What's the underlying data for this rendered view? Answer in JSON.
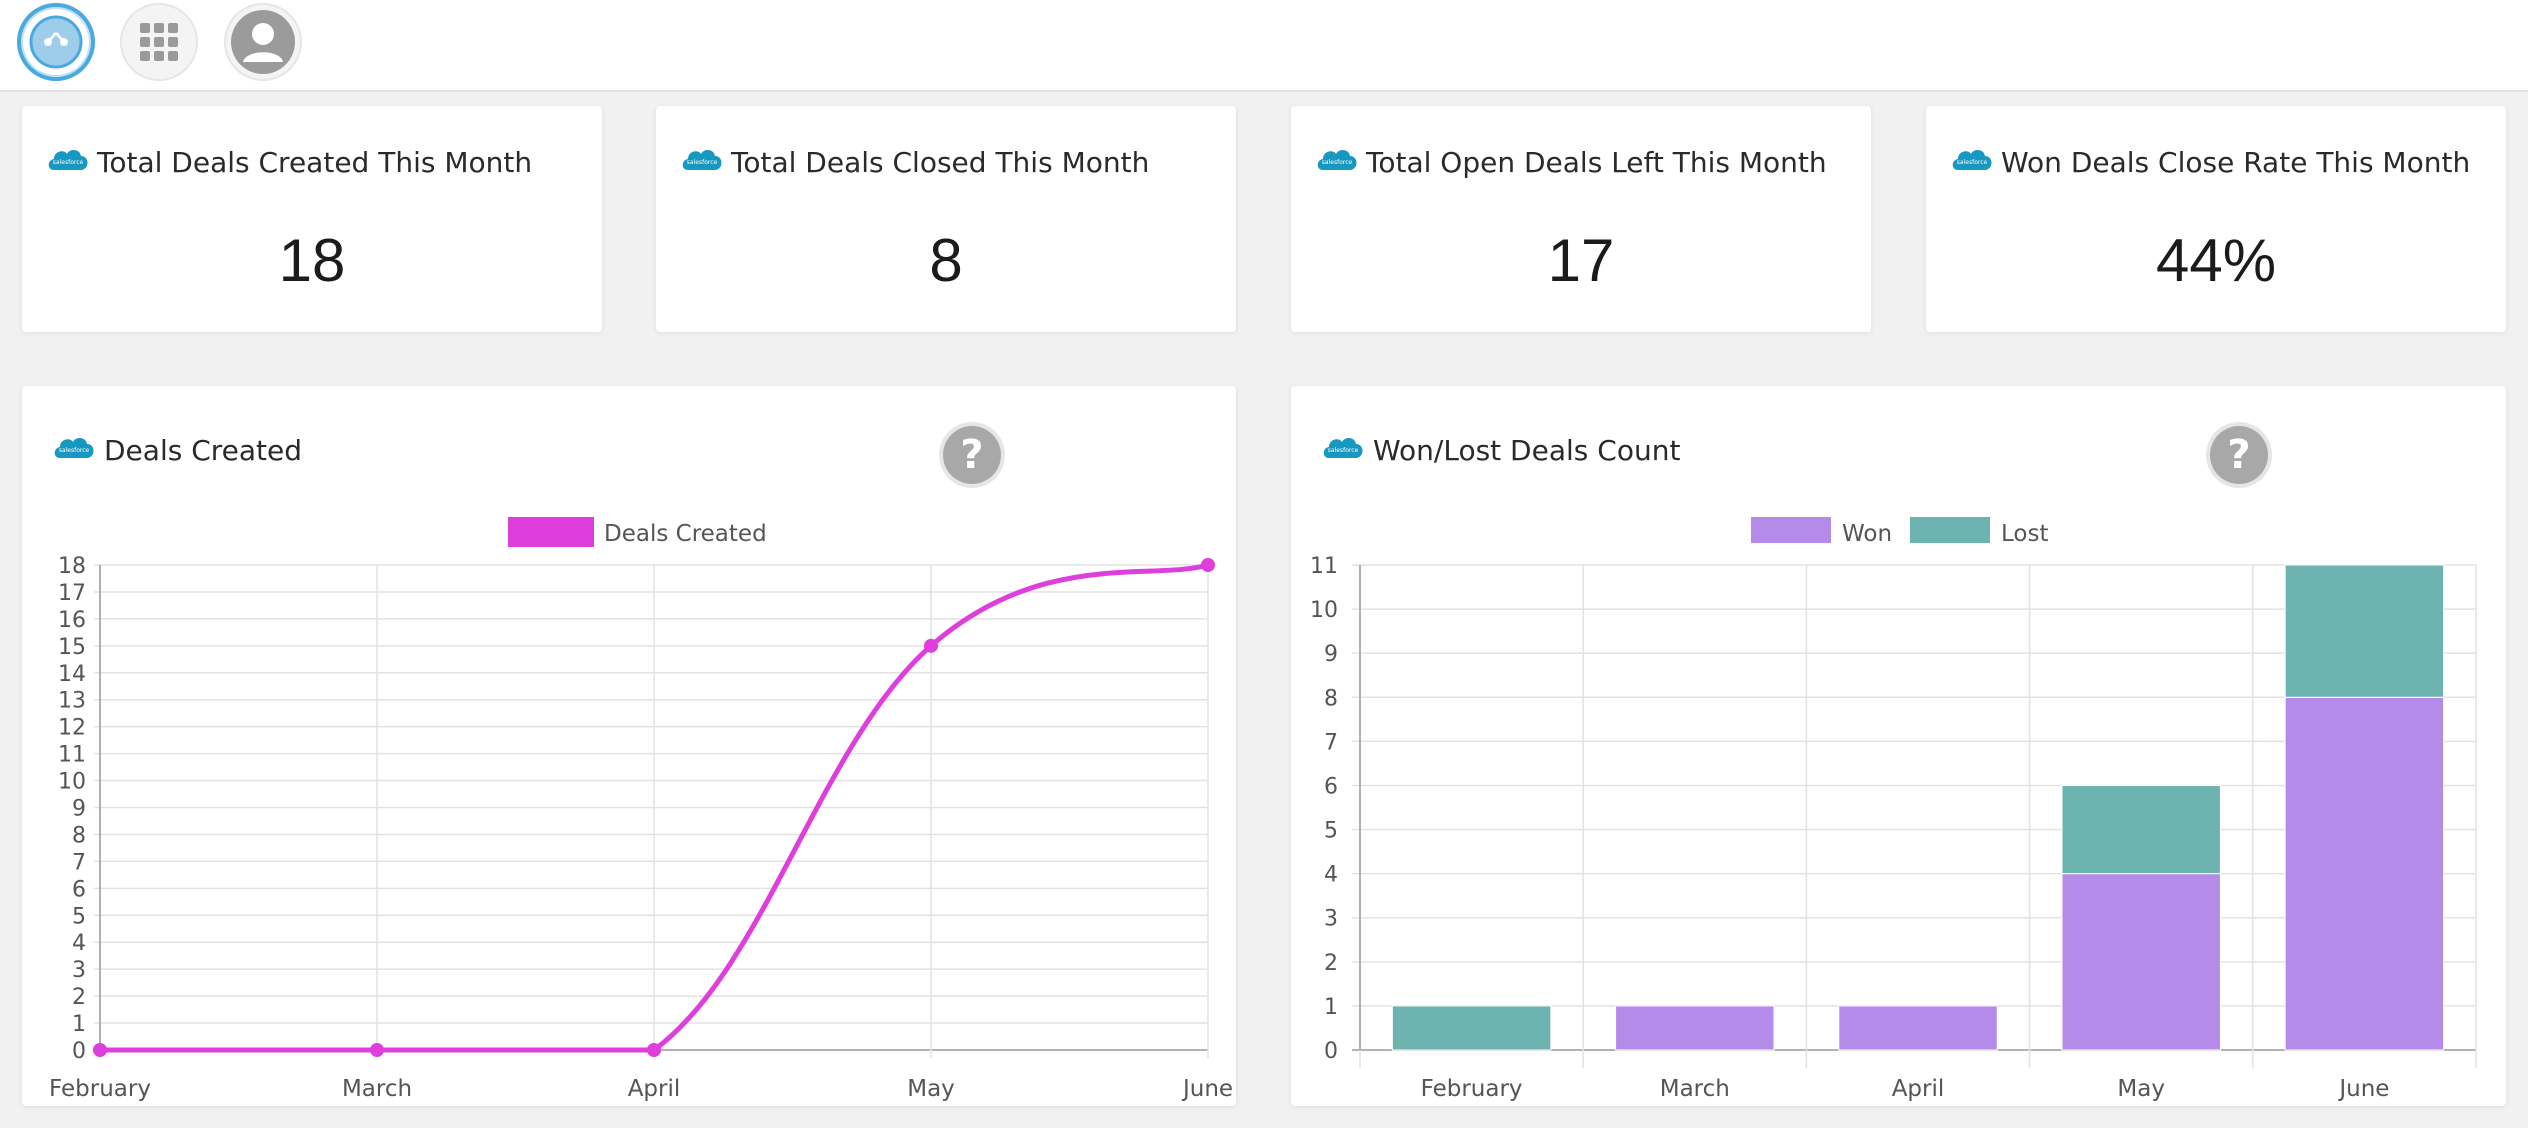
{
  "nav": {
    "items": [
      {
        "name": "dashboard-icon",
        "active": true
      },
      {
        "name": "apps-grid-icon",
        "active": false
      },
      {
        "name": "user-profile-icon",
        "active": false
      }
    ]
  },
  "brand": {
    "logo_text": "salesforce",
    "logo_color": "#1798c1"
  },
  "kpis": [
    {
      "title": "Total Deals Created This Month",
      "value": "18"
    },
    {
      "title": "Total Deals Closed This Month",
      "value": "8"
    },
    {
      "title": "Total Open Deals Left This Month",
      "value": "17"
    },
    {
      "title": "Won Deals Close Rate This Month",
      "value": "44%"
    }
  ],
  "panels": {
    "deals_created": {
      "title": "Deals Created",
      "help": "?"
    },
    "won_lost": {
      "title": "Won/Lost Deals Count",
      "help": "?"
    }
  },
  "colors": {
    "deals_created": "#de3fdc",
    "won": "#b48be8",
    "lost": "#6db3b0",
    "grid": "#e2e2e2",
    "axis_text": "#555555"
  },
  "chart_data": [
    {
      "type": "line",
      "title": "Deals Created",
      "categories": [
        "February",
        "March",
        "April",
        "May",
        "June"
      ],
      "series": [
        {
          "name": "Deals Created",
          "values": [
            0,
            0,
            0,
            15,
            18
          ]
        }
      ],
      "ylim": [
        0,
        18
      ],
      "yticks": [
        0,
        1,
        2,
        3,
        4,
        5,
        6,
        7,
        8,
        9,
        10,
        11,
        12,
        13,
        14,
        15,
        16,
        17,
        18
      ],
      "grid": true,
      "legend": "top-center"
    },
    {
      "type": "bar",
      "stacked": true,
      "title": "Won/Lost Deals Count",
      "categories": [
        "February",
        "March",
        "April",
        "May",
        "June"
      ],
      "series": [
        {
          "name": "Won",
          "values": [
            0,
            1,
            1,
            4,
            8
          ]
        },
        {
          "name": "Lost",
          "values": [
            1,
            0,
            0,
            2,
            3
          ]
        }
      ],
      "ylim": [
        0,
        11
      ],
      "yticks": [
        0,
        1,
        2,
        3,
        4,
        5,
        6,
        7,
        8,
        9,
        10,
        11
      ],
      "grid": true,
      "legend": "top-center"
    }
  ]
}
